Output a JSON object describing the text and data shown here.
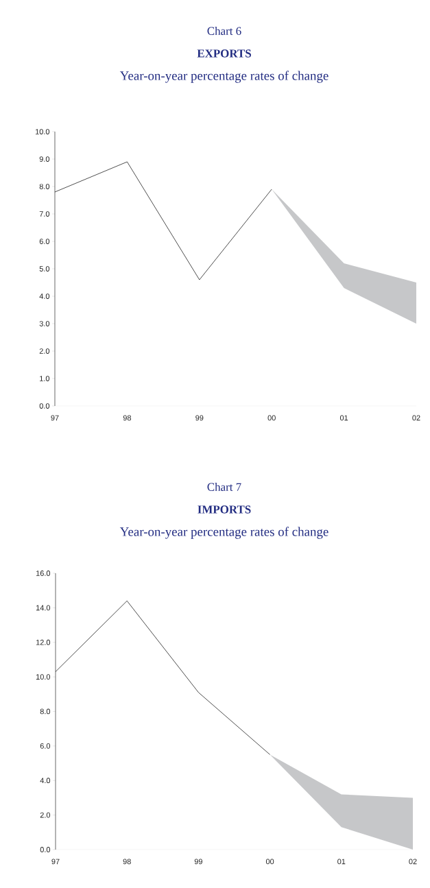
{
  "chart_data": [
    {
      "type": "line",
      "title": "EXPORTS",
      "subtitle": "Year-on-year percentage rates of change",
      "annotations": [
        "Chart 6"
      ],
      "categories": [
        "97",
        "98",
        "99",
        "00",
        "01",
        "02"
      ],
      "series": [
        {
          "type": "line",
          "color": "#000000",
          "values": [
            7.8,
            8.9,
            4.6,
            7.9,
            null,
            null
          ],
          "lower": [
            null,
            null,
            null,
            7.9,
            4.3,
            3.0
          ],
          "upper": [
            null,
            null,
            null,
            7.9,
            5.2,
            4.5
          ]
        }
      ],
      "ylim": [
        0,
        10
      ],
      "yticks": [
        {
          "value": 0,
          "label": "0.0"
        },
        {
          "value": 1,
          "label": "1.0"
        },
        {
          "value": 2,
          "label": "2.0"
        },
        {
          "value": 3,
          "label": "3.0"
        },
        {
          "value": 4,
          "label": "4.0"
        },
        {
          "value": 5,
          "label": "5.0"
        },
        {
          "value": 6,
          "label": "6.0"
        },
        {
          "value": 7,
          "label": "7.0"
        },
        {
          "value": 8,
          "label": "8.0"
        },
        {
          "value": 9,
          "label": "9.0"
        },
        {
          "value": 10,
          "label": "10.0"
        }
      ]
    },
    {
      "type": "line",
      "title": "IMPORTS",
      "subtitle": "Year-on-year percentage rates of change",
      "annotations": [
        "Chart 7"
      ],
      "categories": [
        "97",
        "98",
        "99",
        "00",
        "01",
        "02"
      ],
      "series": [
        {
          "type": "line",
          "color": "#000000",
          "values": [
            10.3,
            14.4,
            9.1,
            5.5,
            null,
            null
          ],
          "lower": [
            null,
            null,
            null,
            5.5,
            1.3,
            0.0
          ],
          "upper": [
            null,
            null,
            null,
            5.5,
            3.2,
            3.0
          ]
        }
      ],
      "ylim": [
        0,
        16
      ],
      "yticks": [
        {
          "value": 0,
          "label": "0.0"
        },
        {
          "value": 2,
          "label": "2.0"
        },
        {
          "value": 4,
          "label": "4.0"
        },
        {
          "value": 6,
          "label": "6.0"
        },
        {
          "value": 8,
          "label": "8.0"
        },
        {
          "value": 10,
          "label": "10.0"
        },
        {
          "value": 12,
          "label": "12.0"
        },
        {
          "value": 14,
          "label": "14.0"
        },
        {
          "value": 16,
          "label": "16.0"
        }
      ]
    }
  ]
}
